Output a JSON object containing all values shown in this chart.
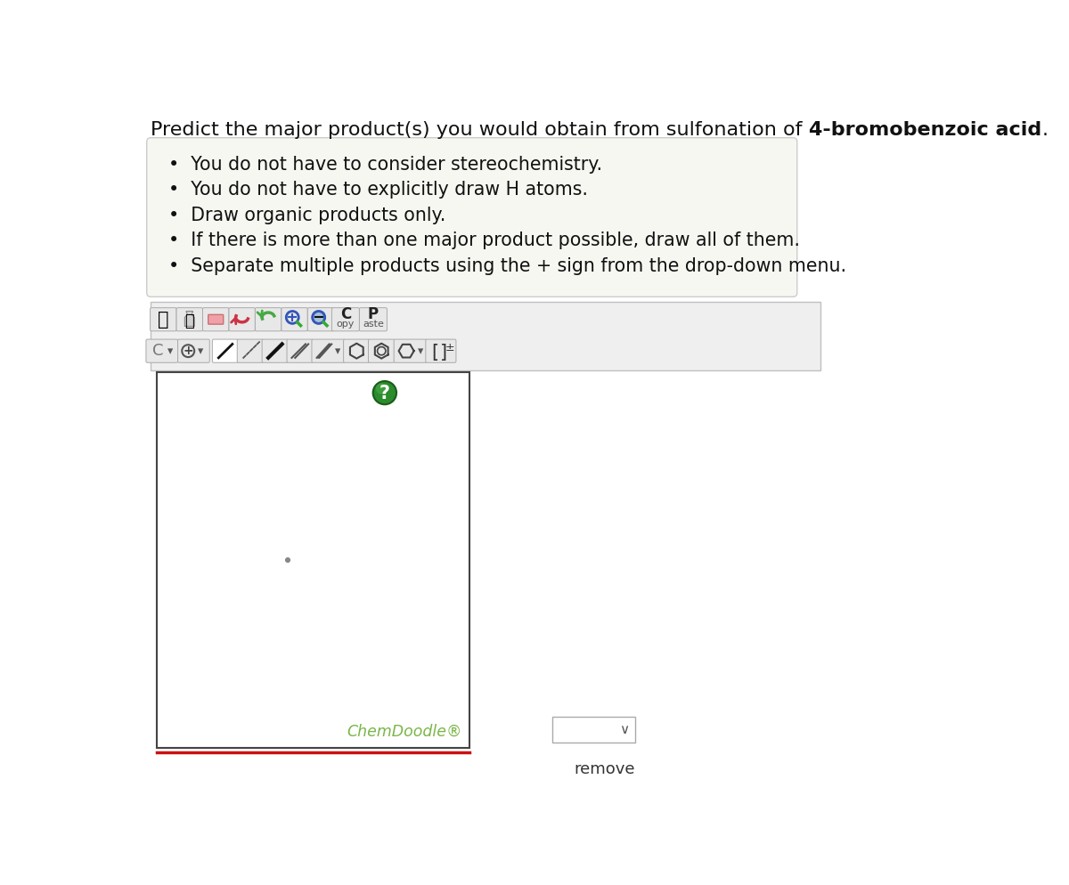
{
  "title_normal": "Predict the major product(s) you would obtain from sulfonation of ",
  "title_bold": "4-bromobenzoic acid",
  "title_end": ".",
  "title_fontsize": 16,
  "bg_color": "#ffffff",
  "instruction_box_color": "#f7f7f2",
  "instruction_box_border": "#cccccc",
  "instructions": [
    "You do not have to consider stereochemistry.",
    "You do not have to explicitly draw H atoms.",
    "Draw organic products only.",
    "If there is more than one major product possible, draw all of them.",
    "Separate multiple products using the + sign from the drop-down menu."
  ],
  "chemdoodle_label": "ChemDoodle®",
  "chemdoodle_color": "#7ab648",
  "remove_label": "remove",
  "toolbar_bg": "#efefef",
  "toolbar_border": "#c0c0c0",
  "canvas_bg": "#ffffff",
  "canvas_border": "#444444",
  "question_mark_green": "#2d8a2d",
  "dot_color": "#888888",
  "dropdown_border": "#aaaaaa",
  "btn_face": "#e8e8e8",
  "btn_edge": "#aaaaaa",
  "btn_selected_face": "#ffffff"
}
